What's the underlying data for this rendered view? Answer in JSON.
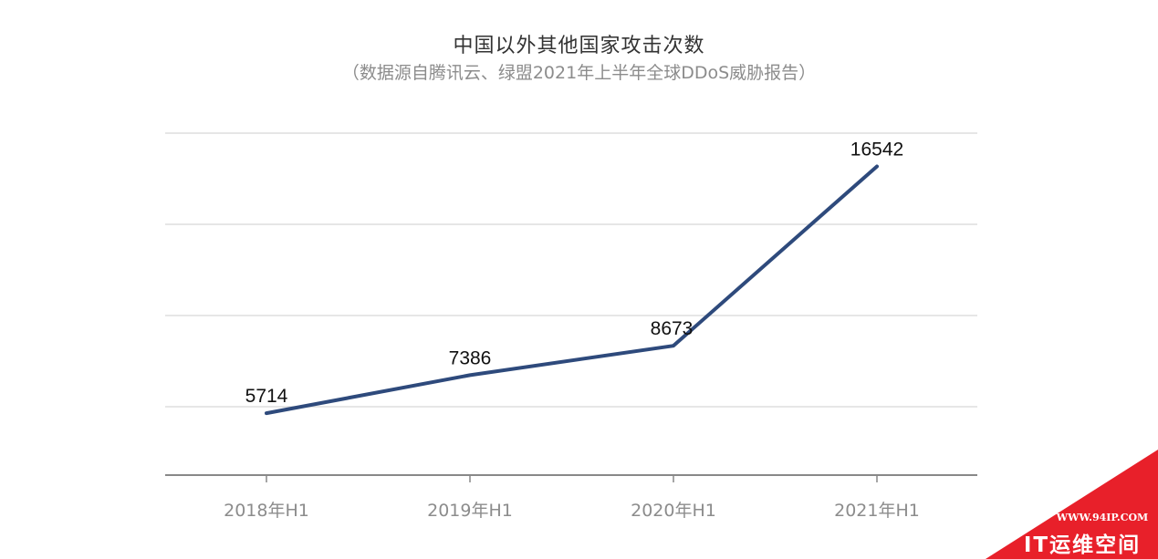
{
  "chart_data": {
    "type": "line",
    "title": "中国以外其他国家攻击次数",
    "subtitle": "（数据源自腾讯云、绿盟2021年上半年全球DDoS威胁报告）",
    "categories": [
      "2018年H1",
      "2019年H1",
      "2020年H1",
      "2021年H1"
    ],
    "series": [
      {
        "values": [
          5714,
          7386,
          8673,
          16542
        ],
        "color": "#2e4a7c"
      }
    ],
    "data_labels": [
      "5714",
      "7386",
      "8673",
      "16542"
    ],
    "ylim": [
      3000,
      18000
    ],
    "grid": true,
    "y_tick_labels_shown": false,
    "legend": "none"
  },
  "watermark": {
    "url": "WWW.94IP.COM",
    "brand": "IT运维空间",
    "color": "#e8202a"
  }
}
